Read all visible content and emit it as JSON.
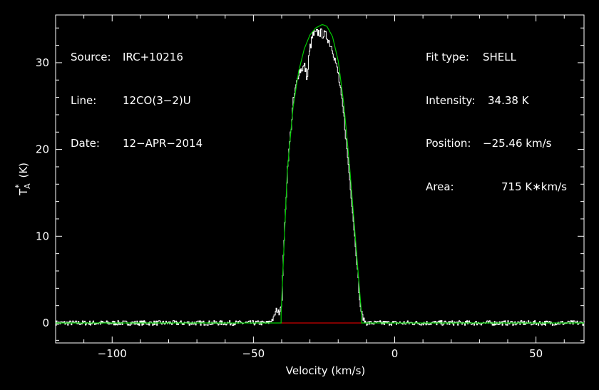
{
  "chart_data": {
    "type": "line",
    "xlabel": "Velocity (km/s)",
    "ylabel": "T",
    "ylabel_sub": "A",
    "ylabel_sup": "*",
    "ylabel_unit": "(K)",
    "xlim": [
      -120,
      67
    ],
    "ylim": [
      -2.3,
      35.5
    ],
    "xticks": [
      -100,
      -50,
      0,
      50
    ],
    "xtick_labels": [
      "−100",
      "−50",
      "0",
      "50"
    ],
    "yticks": [
      0,
      10,
      20,
      30
    ],
    "ytick_labels": [
      "0",
      "10",
      "20",
      "30"
    ],
    "grid": false,
    "colors": {
      "background": "#000000",
      "axes": "#ffffff",
      "data": "#ffffff",
      "fit": "#00cc00",
      "baseline": "#cc0000"
    },
    "series": [
      {
        "role": "observed spectrum",
        "x": [
          -120,
          -100,
          -80,
          -60,
          -45,
          -43,
          -42,
          -41,
          -40,
          -39.5,
          -38,
          -36,
          -34,
          -32,
          -31,
          -30.5,
          -30,
          -29,
          -27,
          -25.5,
          -24,
          -22,
          -20,
          -18,
          -16,
          -14,
          -13,
          -12.5,
          -12,
          -11,
          -10,
          -5,
          0,
          20,
          40,
          67
        ],
        "y": [
          0,
          0,
          0,
          0,
          0,
          0.5,
          1.5,
          1.2,
          2.5,
          8,
          18,
          25.5,
          29,
          29.6,
          28.2,
          30.5,
          31.8,
          33.2,
          33.5,
          33.3,
          33.0,
          31.5,
          28.5,
          23.5,
          16.5,
          9,
          5,
          2.5,
          1.4,
          0.3,
          0,
          0,
          0,
          0,
          0,
          0
        ]
      },
      {
        "role": "SHELL fit",
        "x": [
          -120,
          -40.2,
          -40.2,
          -39.5,
          -38,
          -36,
          -34,
          -32,
          -30,
          -28,
          -26,
          -25.46,
          -24,
          -22,
          -20,
          -18,
          -16,
          -14,
          -12.5,
          -11.7,
          -11.7,
          67
        ],
        "y": [
          0,
          0,
          1.0,
          6.5,
          17.5,
          24.8,
          29.0,
          31.6,
          33.2,
          34.0,
          34.35,
          34.38,
          34.2,
          33.0,
          30.2,
          25.2,
          18.2,
          10.2,
          4.0,
          1.0,
          0,
          0
        ]
      },
      {
        "role": "fit window baseline",
        "x": [
          -40.2,
          -11.7
        ],
        "y": [
          0,
          0
        ]
      }
    ]
  },
  "info_left": [
    {
      "key": "Source:",
      "value": "IRC+10216"
    },
    {
      "key": "Line:",
      "value": "12CO(3−2)U"
    },
    {
      "key": "Date:",
      "value": "12−APR−2014"
    }
  ],
  "info_right": [
    {
      "key": "Fit type:",
      "value": "SHELL"
    },
    {
      "key": "Intensity:",
      "value": "34.38 K"
    },
    {
      "key": "Position:",
      "value": "−25.46 km/s"
    },
    {
      "key": "Area:",
      "value": "715 K∗km/s"
    }
  ]
}
